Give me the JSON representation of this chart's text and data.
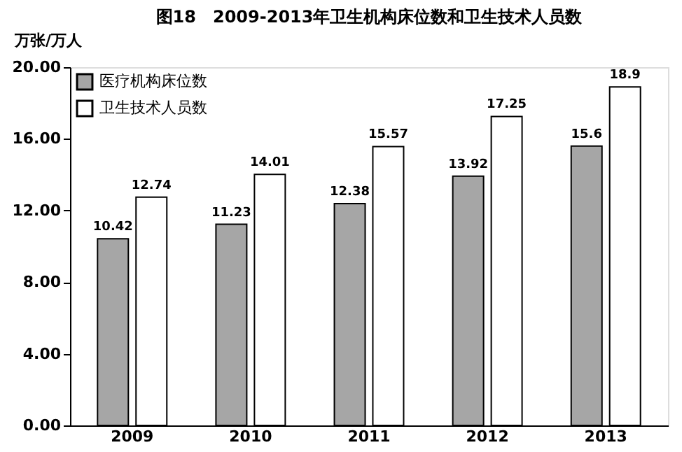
{
  "chart_data": {
    "type": "bar",
    "title": "图18　2009-2013年卫生机构床位数和卫生技术人员数",
    "ylabel": "万张/万人",
    "categories": [
      "2009",
      "2010",
      "2011",
      "2012",
      "2013"
    ],
    "series": [
      {
        "name": "医疗机构床位数",
        "color": "#a6a6a6",
        "values": [
          10.42,
          11.23,
          12.38,
          13.92,
          15.6
        ]
      },
      {
        "name": "卫生技术人员数",
        "color": "#ffffff",
        "values": [
          12.74,
          14.01,
          15.57,
          17.25,
          18.9
        ]
      }
    ],
    "ylim": [
      0,
      20
    ],
    "yticks": [
      {
        "value": 0,
        "label": "0.00"
      },
      {
        "value": 4,
        "label": "4.00"
      },
      {
        "value": 8,
        "label": "8.00"
      },
      {
        "value": 12,
        "label": "12.00"
      },
      {
        "value": 16,
        "label": "16.00"
      },
      {
        "value": 20,
        "label": "20.00"
      }
    ],
    "data_labels": true,
    "grid": false,
    "legend": "top left"
  }
}
